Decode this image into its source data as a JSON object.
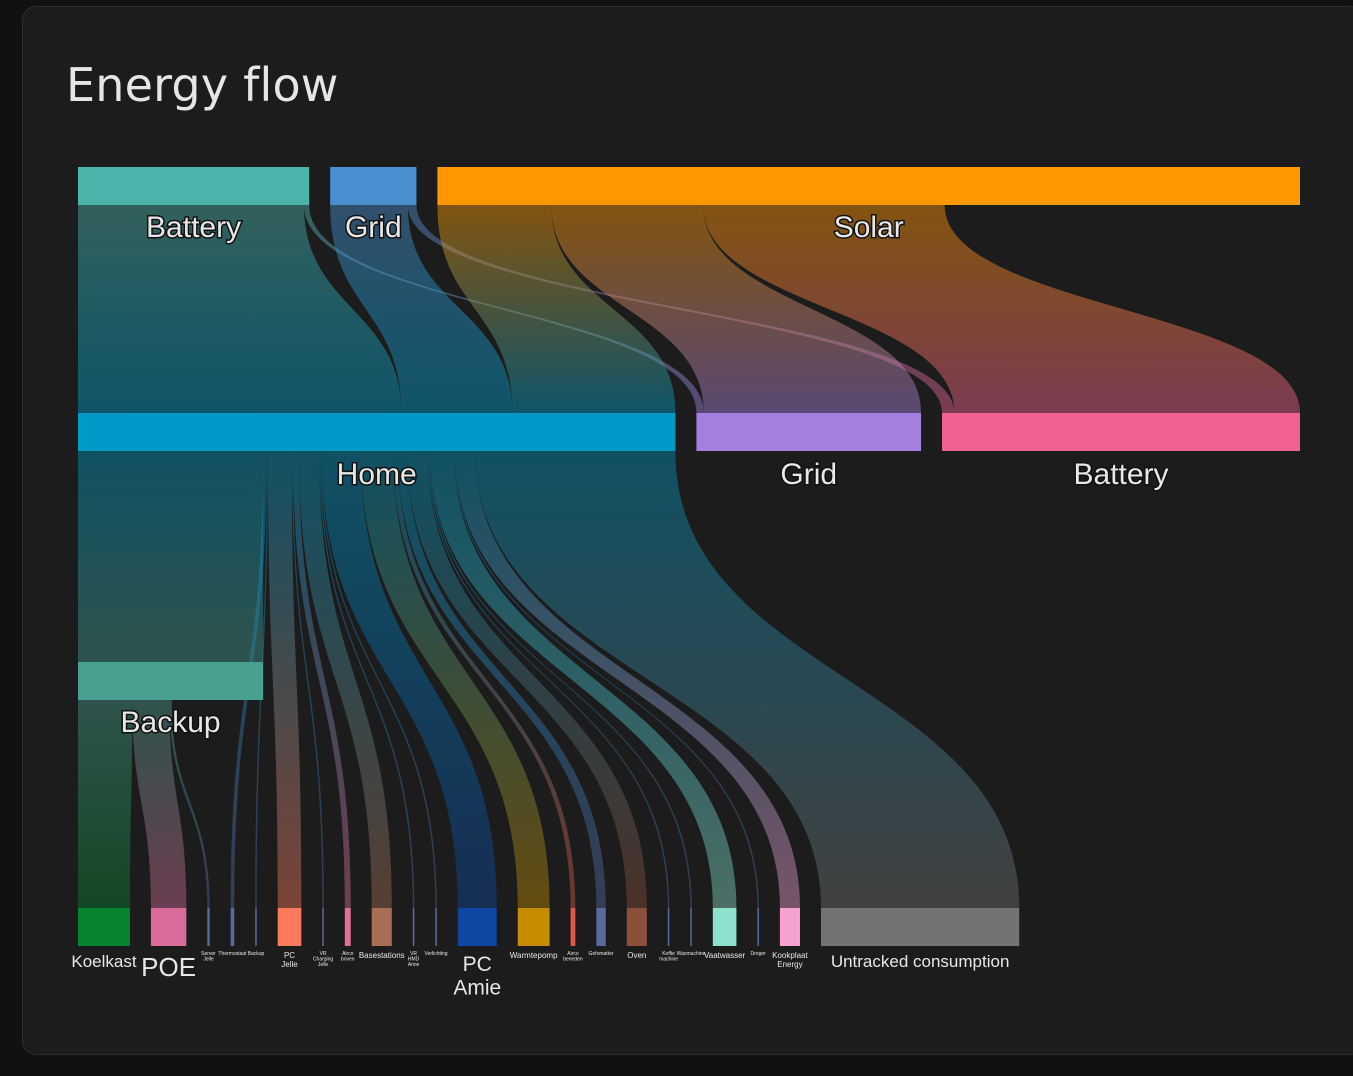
{
  "card": {
    "title": "Energy flow"
  },
  "colors": {
    "Battery": "#4bb4aa",
    "Grid": "#4a8fcf",
    "Solar": "#ff9800",
    "Home": "#009ac7",
    "GridReturn": "#a47fde",
    "BatteryCharge": "#f06292",
    "Backup": "#47a090",
    "Koelkast": "#07842d",
    "POE": "#d96b9b",
    "PC Jelle": "#ff7a5c",
    "Airco boven": "#e46e9b",
    "Basestations": "#a86f54",
    "PC Amie": "#0d47a1",
    "Warmtepomp": "#c78d00",
    "Airco beneden": "#e05a45",
    "Oven": "#8c4f3a",
    "Vaatwasser": "#8de2cd",
    "Kookplaat Energy": "#f7a1d0",
    "Untracked consumption": "#737373",
    "small": "#5a6aa0"
  },
  "chart_data": {
    "type": "sankey",
    "title": "Energy flow",
    "unit": "relative",
    "sources": [
      {
        "id": "Battery",
        "label": "Battery",
        "value": 2.68
      },
      {
        "id": "Grid",
        "label": "Grid",
        "value": 1.0
      },
      {
        "id": "Solar",
        "label": "Solar",
        "value": 10.0
      }
    ],
    "intermediate": [
      {
        "id": "Home",
        "label": "Home",
        "value": 4.84
      },
      {
        "id": "GridReturn",
        "label": "Grid",
        "value": 1.82
      },
      {
        "id": "BatteryCharge",
        "label": "Battery",
        "value": 2.9
      }
    ],
    "links_level1": [
      {
        "from": "Battery",
        "to": "Home",
        "value": 2.62
      },
      {
        "from": "Battery",
        "to": "GridReturn",
        "value": 0.06
      },
      {
        "from": "Grid",
        "to": "Home",
        "value": 0.9
      },
      {
        "from": "Grid",
        "to": "BatteryCharge",
        "value": 0.1
      },
      {
        "from": "Solar",
        "to": "Home",
        "value": 1.32
      },
      {
        "from": "Solar",
        "to": "GridReturn",
        "value": 1.76
      },
      {
        "from": "Solar",
        "to": "BatteryCharge",
        "value": 2.8
      }
    ],
    "backup": {
      "id": "Backup",
      "label": "Backup",
      "value": 1.5
    },
    "consumers": [
      {
        "id": "Koelkast",
        "label": "Koelkast",
        "value": 0.44,
        "parent": "Backup"
      },
      {
        "id": "POE",
        "label": "POE",
        "value": 0.3,
        "parent": "Backup"
      },
      {
        "id": "c3",
        "label": "Server Jelle",
        "value": 0.02,
        "parent": "Backup"
      },
      {
        "id": "c4",
        "label": "Thermostaat",
        "value": 0.03,
        "parent": "Home"
      },
      {
        "id": "c5",
        "label": "Backup",
        "value": 0.01,
        "parent": "Home"
      },
      {
        "id": "PC Jelle",
        "label": "PC Jelle",
        "value": 0.2,
        "parent": "Home"
      },
      {
        "id": "c7",
        "label": "VR Charging Jelle",
        "value": 0.01,
        "parent": "Home"
      },
      {
        "id": "Airco boven",
        "label": "Airco boven",
        "value": 0.05,
        "parent": "Home"
      },
      {
        "id": "Basestations",
        "label": "Basestations",
        "value": 0.17,
        "parent": "Home"
      },
      {
        "id": "c10",
        "label": "VR HMD Amie",
        "value": 0.01,
        "parent": "Home"
      },
      {
        "id": "c11",
        "label": "Verlichting",
        "value": 0.01,
        "parent": "Home"
      },
      {
        "id": "PC Amie",
        "label": "PC Amie",
        "value": 0.33,
        "parent": "Home"
      },
      {
        "id": "Warmtepomp",
        "label": "Warmtepomp",
        "value": 0.27,
        "parent": "Home"
      },
      {
        "id": "Airco beneden",
        "label": "Airco beneden",
        "value": 0.04,
        "parent": "Home"
      },
      {
        "id": "c15",
        "label": "Gefomatter",
        "value": 0.08,
        "parent": "Home"
      },
      {
        "id": "Oven",
        "label": "Oven",
        "value": 0.17,
        "parent": "Home"
      },
      {
        "id": "c17",
        "label": "Koffie machine",
        "value": 0.01,
        "parent": "Home"
      },
      {
        "id": "c18",
        "label": "Wasmachine",
        "value": 0.01,
        "parent": "Home"
      },
      {
        "id": "Vaatwasser",
        "label": "Vaatwasser",
        "value": 0.2,
        "parent": "Home"
      },
      {
        "id": "c20",
        "label": "Droger",
        "value": 0.01,
        "parent": "Home"
      },
      {
        "id": "Kookplaat Energy",
        "label": "Kookplaat Energy",
        "value": 0.17,
        "parent": "Home"
      },
      {
        "id": "Untracked consumption",
        "label": "Untracked consumption",
        "value": 1.68,
        "parent": "Home"
      }
    ]
  }
}
